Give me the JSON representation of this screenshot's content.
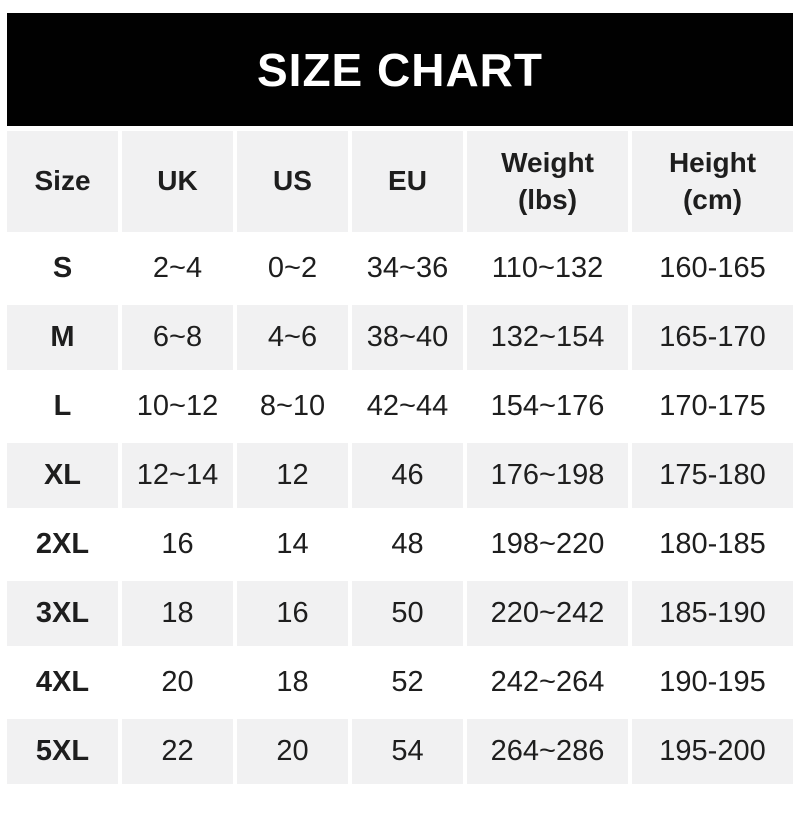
{
  "banner": {
    "title": "SIZE CHART"
  },
  "colors": {
    "banner_bg": "#010101",
    "banner_text": "#ffffff",
    "row_alt_bg": "#f1f1f2",
    "row_bg": "#ffffff",
    "text": "#1e1e1e"
  },
  "chart_data": {
    "type": "table",
    "title": "SIZE CHART",
    "columns": [
      "Size",
      "UK",
      "US",
      "EU",
      "Weight (lbs)",
      "Height (cm)"
    ],
    "header_lines": [
      [
        "Size",
        ""
      ],
      [
        "UK",
        ""
      ],
      [
        "US",
        ""
      ],
      [
        "EU",
        ""
      ],
      [
        "Weight",
        "(lbs)"
      ],
      [
        "Height",
        "(cm)"
      ]
    ],
    "rows": [
      [
        "S",
        "2~4",
        "0~2",
        "34~36",
        "110~132",
        "160-165"
      ],
      [
        "M",
        "6~8",
        "4~6",
        "38~40",
        "132~154",
        "165-170"
      ],
      [
        "L",
        "10~12",
        "8~10",
        "42~44",
        "154~176",
        "170-175"
      ],
      [
        "XL",
        "12~14",
        "12",
        "46",
        "176~198",
        "175-180"
      ],
      [
        "2XL",
        "16",
        "14",
        "48",
        "198~220",
        "180-185"
      ],
      [
        "3XL",
        "18",
        "16",
        "50",
        "220~242",
        "185-190"
      ],
      [
        "4XL",
        "20",
        "18",
        "52",
        "242~264",
        "190-195"
      ],
      [
        "5XL",
        "22",
        "20",
        "54",
        "264~286",
        "195-200"
      ]
    ],
    "layout": {
      "header_row_bg": "alt",
      "alternating_rows": "S white, M gray, L white, XL gray, 2XL white, 3XL gray, 4XL white, 5XL gray",
      "grid": "off",
      "column_separator": "white gutter"
    }
  }
}
